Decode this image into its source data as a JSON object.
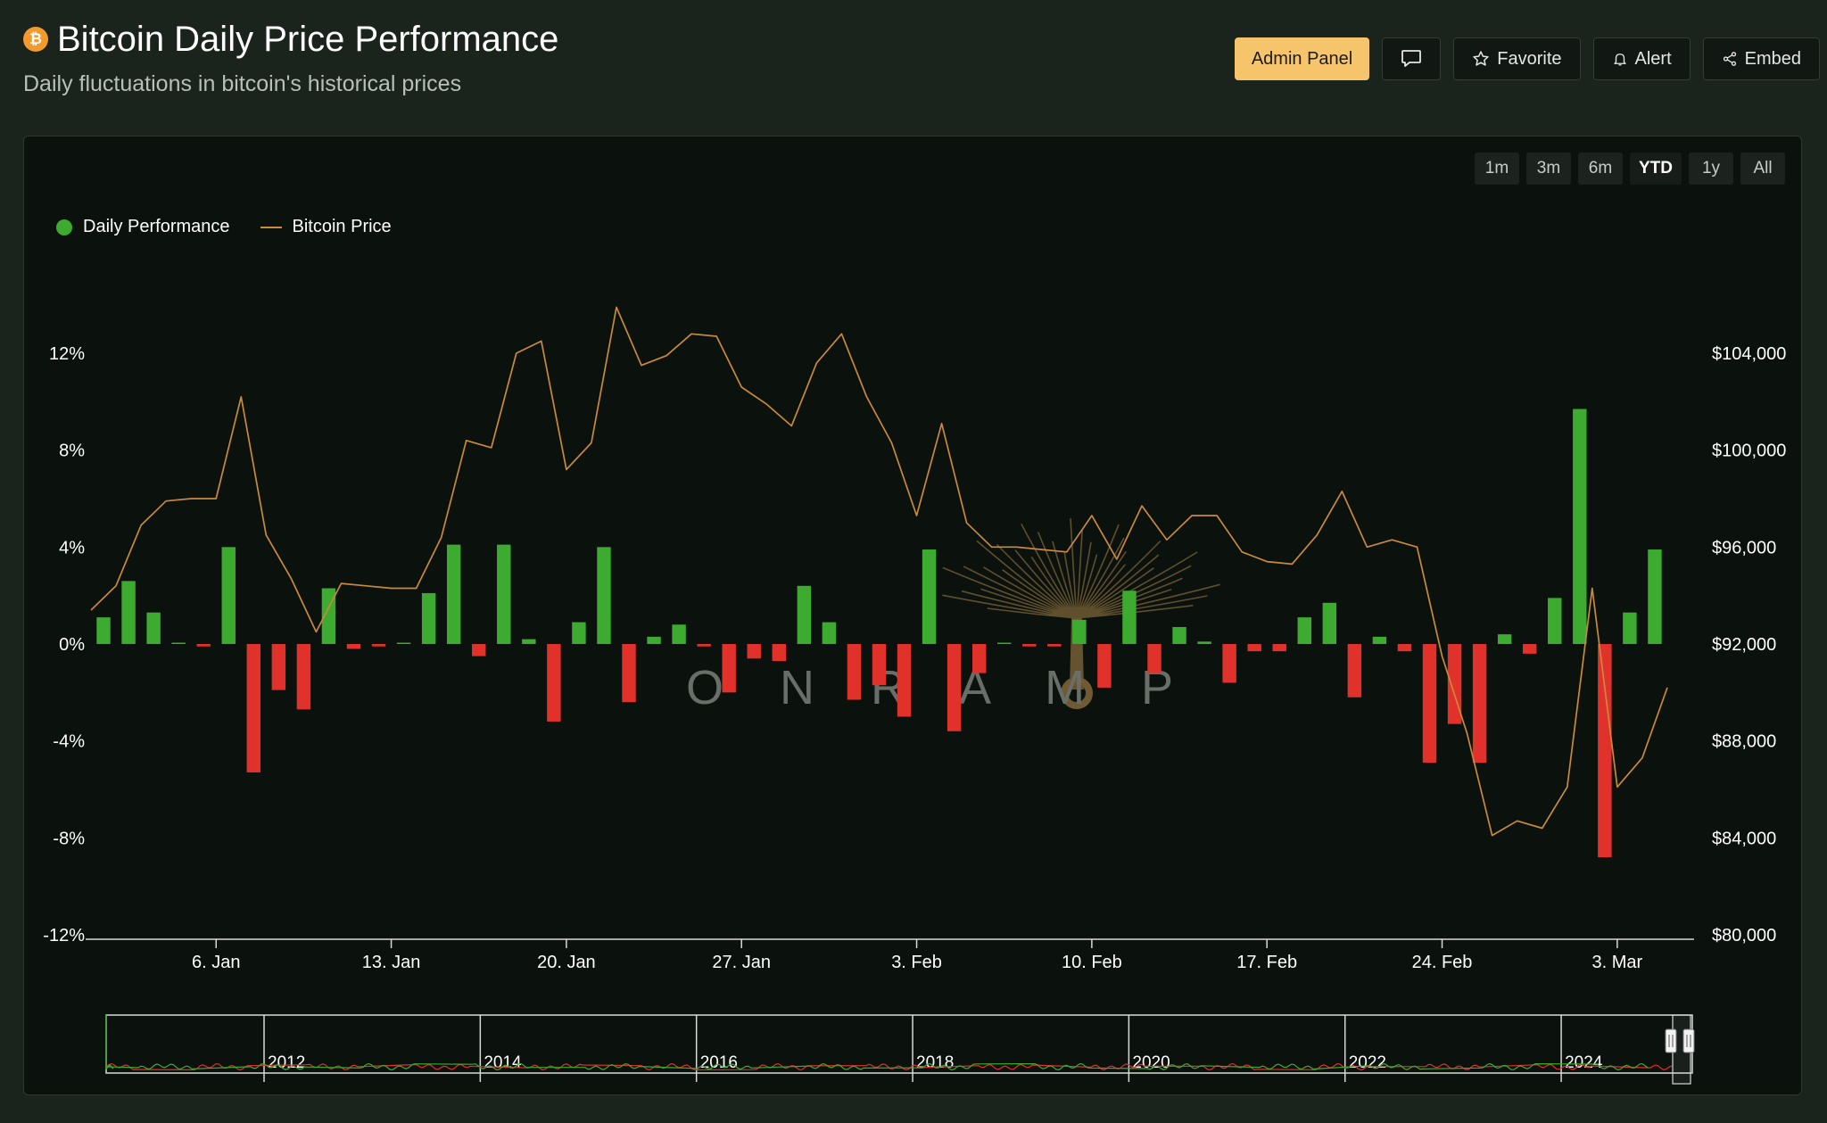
{
  "header": {
    "title": "Bitcoin Daily Price Performance",
    "subtitle": "Daily fluctuations in bitcoin's historical prices",
    "coin_symbol": "₿"
  },
  "actions": {
    "admin_label": "Admin Panel",
    "favorite_label": "Favorite",
    "alert_label": "Alert",
    "embed_label": "Embed"
  },
  "ranges": [
    "1m",
    "3m",
    "6m",
    "YTD",
    "1y",
    "All"
  ],
  "active_range": "YTD",
  "legend": [
    "Daily Performance",
    "Bitcoin Price"
  ],
  "watermark": {
    "text": "ON RAMP",
    "color": "#6f5a33"
  },
  "colors": {
    "positive": "#3dab2f",
    "negative": "#e0312a",
    "price_line": "#c98a3b",
    "navigator_up": "#3dab2f",
    "navigator_down": "#e0312a"
  },
  "navigator": {
    "year_labels": [
      "2012",
      "2014",
      "2016",
      "2018",
      "2020",
      "2022",
      "2024"
    ]
  },
  "chart_data": {
    "type": "bar",
    "title": "Bitcoin Daily Price Performance",
    "subtitle": "Daily fluctuations in bitcoin's historical prices",
    "x_start_date": "2025-01-01",
    "x_tick_labels": [
      "6. Jan",
      "13. Jan",
      "20. Jan",
      "27. Jan",
      "3. Feb",
      "10. Feb",
      "17. Feb",
      "24. Feb",
      "3. Mar"
    ],
    "x_tick_dates": [
      "2025-01-06",
      "2025-01-13",
      "2025-01-20",
      "2025-01-27",
      "2025-02-03",
      "2025-02-10",
      "2025-02-17",
      "2025-02-24",
      "2025-03-03"
    ],
    "y_left": {
      "label": "",
      "range": [
        -12,
        12
      ],
      "ticks": [
        12,
        8,
        4,
        0,
        -4,
        -8,
        -12
      ],
      "tick_labels": [
        "12%",
        "8%",
        "4%",
        "0%",
        "-4%",
        "-8%",
        "-12%"
      ]
    },
    "y_right": {
      "label": "",
      "range": [
        80000,
        104000
      ],
      "ticks": [
        104000,
        100000,
        96000,
        92000,
        88000,
        84000,
        80000
      ],
      "tick_labels": [
        "$104,000",
        "$100,000",
        "$96,000",
        "$92,000",
        "$88,000",
        "$84,000",
        "$80,000"
      ]
    },
    "legend_position": "top-left",
    "grid": false,
    "series": [
      {
        "name": "Daily Performance",
        "type": "bar",
        "values": [
          1.1,
          2.6,
          1.3,
          0,
          -0.1,
          4.0,
          -5.3,
          -1.9,
          -2.7,
          2.3,
          -0.2,
          -0.1,
          0,
          2.1,
          4.1,
          -0.5,
          4.1,
          0.2,
          -3.2,
          0.9,
          4.0,
          -2.4,
          0.3,
          0.8,
          -0.1,
          -2.0,
          -0.6,
          -0.7,
          2.4,
          0.9,
          -2.3,
          -1.7,
          -3.0,
          3.9,
          -3.6,
          -1.2,
          0,
          -0.1,
          -0.1,
          1.0,
          -1.8,
          2.2,
          -1.2,
          0.7,
          0.1,
          -1.6,
          -0.3,
          -0.3,
          1.1,
          1.7,
          -2.2,
          0.3,
          -0.3,
          -4.9,
          -3.3,
          -4.9,
          0.4,
          -0.4,
          1.9,
          9.7,
          -8.8,
          1.3,
          3.9
        ]
      },
      {
        "name": "Bitcoin Price",
        "type": "line",
        "values": [
          93400,
          94400,
          96900,
          97900,
          98000,
          98000,
          102200,
          96500,
          94700,
          92500,
          94500,
          94400,
          94300,
          94300,
          96400,
          100400,
          100100,
          104000,
          104500,
          99200,
          100300,
          105900,
          103500,
          103900,
          104800,
          104700,
          102600,
          101900,
          101000,
          103600,
          104800,
          102200,
          100300,
          97300,
          101100,
          97000,
          96000,
          96000,
          95900,
          95800,
          97300,
          95500,
          97700,
          96300,
          97300,
          97300,
          95800,
          95400,
          95300,
          96500,
          98300,
          96000,
          96300,
          96000,
          91500,
          88300,
          84100,
          84700,
          84400,
          86100,
          94300,
          86100,
          87300,
          90200
        ]
      }
    ]
  }
}
